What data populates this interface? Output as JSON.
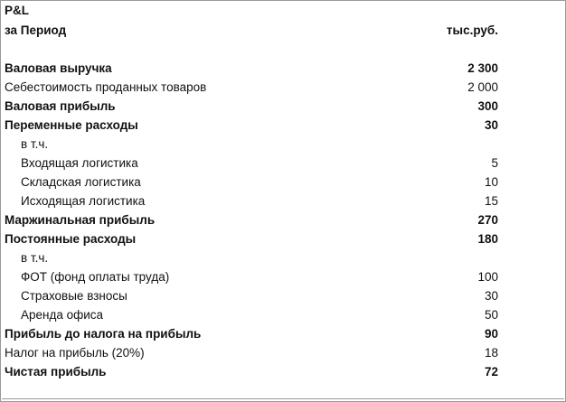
{
  "header": {
    "title": "P&L",
    "period": "за Период",
    "unit": "тыс.руб."
  },
  "rows": [
    {
      "label": "Валовая выручка",
      "value": "2 300",
      "bold": true,
      "indent": false
    },
    {
      "label": "Себестоимость проданных товаров",
      "value": "2 000",
      "bold": false,
      "indent": false
    },
    {
      "label": "Валовая прибыль",
      "value": "300",
      "bold": true,
      "indent": false
    },
    {
      "label": "Переменные расходы",
      "value": "30",
      "bold": true,
      "indent": false
    },
    {
      "label": "в т.ч.",
      "value": "",
      "bold": false,
      "indent": true
    },
    {
      "label": "Входящая логистика",
      "value": "5",
      "bold": false,
      "indent": true
    },
    {
      "label": "Складская логистика",
      "value": "10",
      "bold": false,
      "indent": true
    },
    {
      "label": "Исходящая логистика",
      "value": "15",
      "bold": false,
      "indent": true
    },
    {
      "label": "Маржинальная прибыль",
      "value": "270",
      "bold": true,
      "indent": false
    },
    {
      "label": "Постоянные расходы",
      "value": "180",
      "bold": true,
      "indent": false
    },
    {
      "label": "в т.ч.",
      "value": "",
      "bold": false,
      "indent": true
    },
    {
      "label": "ФОТ (фонд оплаты труда)",
      "value": "100",
      "bold": false,
      "indent": true
    },
    {
      "label": "Страховые взносы",
      "value": "30",
      "bold": false,
      "indent": true
    },
    {
      "label": "Аренда офиса",
      "value": "50",
      "bold": false,
      "indent": true
    },
    {
      "label": "Прибыль до налога на прибыль",
      "value": "90",
      "bold": true,
      "indent": false
    },
    {
      "label": "Налог на прибыль (20%)",
      "value": "18",
      "bold": false,
      "indent": false
    },
    {
      "label": "Чистая прибыль",
      "value": "72",
      "bold": true,
      "indent": false
    }
  ]
}
